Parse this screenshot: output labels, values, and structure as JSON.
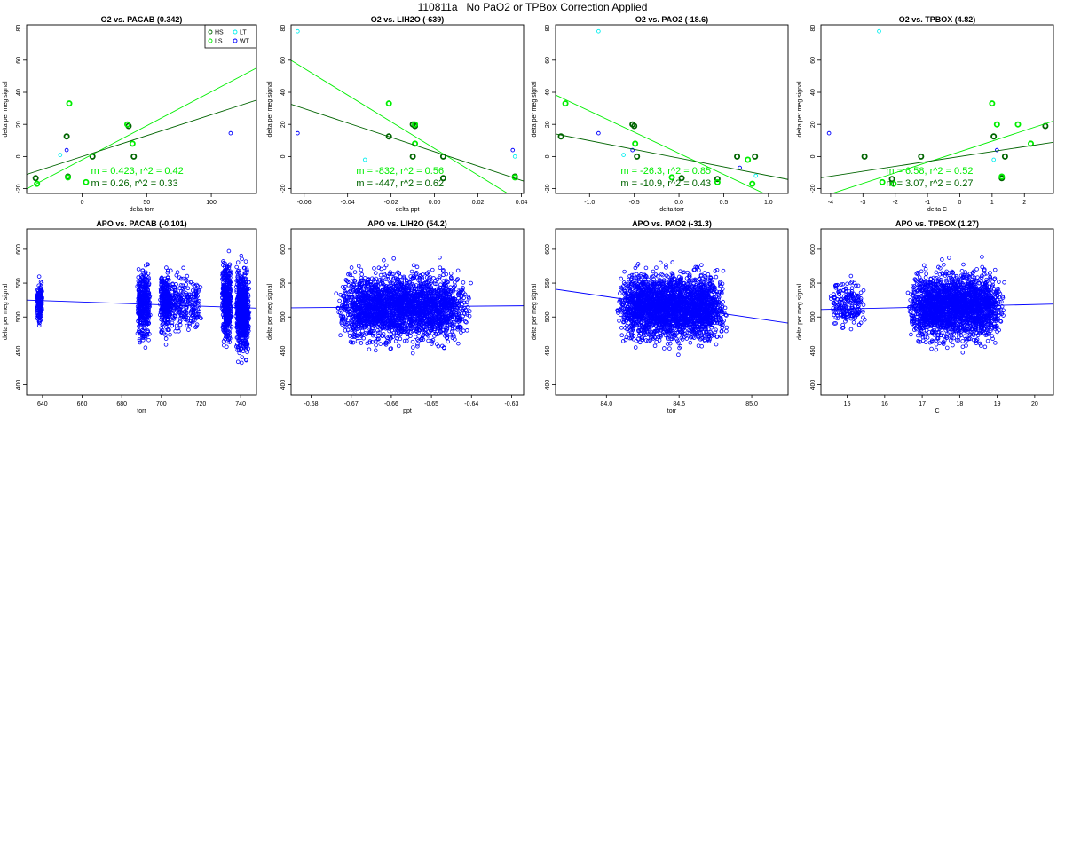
{
  "page_title": "110811a   No PaO2 or TPBox Correction Applied",
  "colors": {
    "HS": "#006400",
    "LS": "#00ee00",
    "LT": "#00eeee",
    "WT": "#0000ff",
    "apo": "#0000ff",
    "frame": "#000000"
  },
  "chart_data": [
    {
      "type": "scatter",
      "title": "O2 vs. PACAB (0.342)",
      "xlabel": "delta torr",
      "ylabel": "delta per meg signal",
      "xlim": [
        -43,
        135
      ],
      "ylim": [
        -23,
        82
      ],
      "xticks": [
        0,
        50,
        100
      ],
      "xtick_labels": [
        "0",
        "50",
        "100"
      ],
      "yticks": [
        -20,
        0,
        20,
        40,
        60,
        80
      ],
      "ytick_labels": [
        "-20",
        "0",
        "20",
        "40",
        "60",
        "80"
      ],
      "legend": {
        "position": "top-right",
        "entries": [
          {
            "label": "HS",
            "color": "#006400"
          },
          {
            "label": "LT",
            "color": "#00eeee"
          },
          {
            "label": "LS",
            "color": "#00ee00"
          },
          {
            "label": "WT",
            "color": "#0000ff"
          }
        ]
      },
      "series": [
        {
          "name": "HS",
          "color": "#006400",
          "points": [
            [
              -36,
              -13.5
            ],
            [
              -12,
              12.5
            ],
            [
              -11,
              -12.5
            ],
            [
              8,
              0
            ],
            [
              36,
              19
            ],
            [
              40,
              0
            ]
          ]
        },
        {
          "name": "LS",
          "color": "#00ee00",
          "points": [
            [
              -35,
              -17
            ],
            [
              -10,
              33
            ],
            [
              -11,
              -13
            ],
            [
              35,
              20
            ],
            [
              39,
              8
            ],
            [
              3,
              -16
            ]
          ]
        },
        {
          "name": "LT",
          "color": "#00eeee",
          "points": [
            [
              -17,
              1
            ]
          ]
        },
        {
          "name": "WT",
          "color": "#0000ff",
          "points": [
            [
              -12,
              4
            ],
            [
              115,
              14.5
            ]
          ]
        }
      ],
      "fits": [
        {
          "series": "LS",
          "slope": 0.423,
          "intercept": -2,
          "label": "m = 0.423, r^2 = 0.42",
          "color": "#00ee00"
        },
        {
          "series": "HS",
          "slope": 0.26,
          "intercept": 0,
          "label": "m = 0.26, r^2 = 0.33",
          "color": "#006400"
        }
      ]
    },
    {
      "type": "scatter",
      "title": "O2 vs. LIH2O (-639)",
      "xlabel": "delta ppt",
      "ylabel": "delta per meg signal",
      "xlim": [
        -0.066,
        0.041
      ],
      "ylim": [
        -23,
        82
      ],
      "xticks": [
        -0.06,
        -0.04,
        -0.02,
        0,
        0.02,
        0.04
      ],
      "xtick_labels": [
        "-0.06",
        "-0.04",
        "-0.02",
        "0.00",
        "0.02",
        "0.04"
      ],
      "yticks": [
        -20,
        0,
        20,
        40,
        60,
        80
      ],
      "ytick_labels": [
        "-20",
        "0",
        "20",
        "40",
        "60",
        "80"
      ],
      "series": [
        {
          "name": "HS",
          "color": "#006400",
          "points": [
            [
              -0.021,
              12.5
            ],
            [
              -0.01,
              20
            ],
            [
              -0.009,
              19
            ],
            [
              -0.01,
              0
            ],
            [
              0.004,
              0
            ],
            [
              0.004,
              -13.5
            ],
            [
              0.037,
              -12.5
            ]
          ]
        },
        {
          "name": "LS",
          "color": "#00ee00",
          "points": [
            [
              -0.021,
              33
            ],
            [
              -0.009,
              8
            ],
            [
              -0.009,
              20
            ],
            [
              0.037,
              -13
            ]
          ]
        },
        {
          "name": "LT",
          "color": "#00eeee",
          "points": [
            [
              -0.063,
              78
            ],
            [
              -0.032,
              -2
            ],
            [
              0.037,
              0
            ]
          ]
        },
        {
          "name": "WT",
          "color": "#0000ff",
          "points": [
            [
              -0.063,
              14.5
            ],
            [
              0.036,
              4
            ]
          ]
        }
      ],
      "fits": [
        {
          "series": "LS",
          "slope": -832,
          "intercept": 5,
          "label": "m = -832, r^2 = 0.56",
          "color": "#00ee00"
        },
        {
          "series": "HS",
          "slope": -447,
          "intercept": 3,
          "label": "m = -447, r^2 = 0.62",
          "color": "#006400"
        }
      ]
    },
    {
      "type": "scatter",
      "title": "O2 vs. PAO2 (-18.6)",
      "xlabel": "delta torr",
      "ylabel": "delta per meg signal",
      "xlim": [
        -1.38,
        1.22
      ],
      "ylim": [
        -23,
        82
      ],
      "xticks": [
        -1,
        -0.5,
        0,
        0.5,
        1
      ],
      "xtick_labels": [
        "-1.0",
        "-0.5",
        "0.0",
        "0.5",
        "1.0"
      ],
      "yticks": [
        -20,
        0,
        20,
        40,
        60,
        80
      ],
      "ytick_labels": [
        "-20",
        "0",
        "20",
        "40",
        "60",
        "80"
      ],
      "series": [
        {
          "name": "HS",
          "color": "#006400",
          "points": [
            [
              -1.32,
              12.5
            ],
            [
              -0.52,
              20
            ],
            [
              -0.5,
              19
            ],
            [
              -0.47,
              0
            ],
            [
              0.03,
              -13.5
            ],
            [
              0.43,
              -14
            ],
            [
              0.85,
              0
            ],
            [
              0.65,
              0
            ]
          ]
        },
        {
          "name": "LS",
          "color": "#00ee00",
          "points": [
            [
              -1.27,
              33
            ],
            [
              -0.49,
              8
            ],
            [
              -0.08,
              -13
            ],
            [
              0.82,
              -17
            ],
            [
              0.43,
              -16
            ],
            [
              0.77,
              -2
            ]
          ]
        },
        {
          "name": "LT",
          "color": "#00eeee",
          "points": [
            [
              -0.9,
              78
            ],
            [
              -0.62,
              1
            ],
            [
              0.86,
              -12
            ]
          ]
        },
        {
          "name": "WT",
          "color": "#0000ff",
          "points": [
            [
              -0.9,
              14.5
            ],
            [
              -0.52,
              4
            ],
            [
              0.68,
              -7
            ]
          ]
        }
      ],
      "fits": [
        {
          "series": "LS",
          "slope": -26.3,
          "intercept": 2,
          "label": "m = -26.3, r^2 = 0.85",
          "color": "#00ee00"
        },
        {
          "series": "HS",
          "slope": -10.9,
          "intercept": -1,
          "label": "m = -10.9, r^2 = 0.43",
          "color": "#006400"
        }
      ]
    },
    {
      "type": "scatter",
      "title": "O2 vs. TPBOX (4.82)",
      "xlabel": "delta C",
      "ylabel": "delta per meg signal",
      "xlim": [
        -4.3,
        2.9
      ],
      "ylim": [
        -23,
        82
      ],
      "xticks": [
        -4,
        -3,
        -2,
        -1,
        0,
        1,
        2
      ],
      "xtick_labels": [
        "-4",
        "-3",
        "-2",
        "-1",
        "0",
        "1",
        "2"
      ],
      "yticks": [
        -20,
        0,
        20,
        40,
        60,
        80
      ],
      "ytick_labels": [
        "-20",
        "0",
        "20",
        "40",
        "60",
        "80"
      ],
      "series": [
        {
          "name": "HS",
          "color": "#006400",
          "points": [
            [
              -2.95,
              0
            ],
            [
              -2.1,
              -14
            ],
            [
              1.05,
              12.5
            ],
            [
              1.3,
              -13.5
            ],
            [
              1.4,
              0
            ],
            [
              2.65,
              19
            ],
            [
              -1.2,
              0
            ]
          ]
        },
        {
          "name": "LS",
          "color": "#00ee00",
          "points": [
            [
              -2.4,
              -16
            ],
            [
              -2.05,
              -17
            ],
            [
              1,
              33
            ],
            [
              1.15,
              20
            ],
            [
              1.3,
              -12.5
            ],
            [
              2.2,
              8
            ],
            [
              1.8,
              20
            ]
          ]
        },
        {
          "name": "LT",
          "color": "#00eeee",
          "points": [
            [
              -2.5,
              78
            ],
            [
              1.05,
              -2
            ]
          ]
        },
        {
          "name": "WT",
          "color": "#0000ff",
          "points": [
            [
              -4.05,
              14.5
            ],
            [
              1.15,
              4
            ]
          ]
        }
      ],
      "fits": [
        {
          "series": "LS",
          "slope": 6.58,
          "intercept": 3,
          "label": "m = 6.58, r^2 = 0.52",
          "color": "#00ee00"
        },
        {
          "series": "HS",
          "slope": 3.07,
          "intercept": 0,
          "label": "m = 3.07, r^2 = 0.27",
          "color": "#006400"
        }
      ]
    },
    {
      "type": "scatter",
      "title": "APO vs. PACAB (-0.101)",
      "xlabel": "torr",
      "ylabel": "delta per meg signal",
      "xlim": [
        632,
        748
      ],
      "ylim": [
        385,
        630
      ],
      "xticks": [
        640,
        660,
        680,
        700,
        720,
        740
      ],
      "xtick_labels": [
        "640",
        "660",
        "680",
        "700",
        "720",
        "740"
      ],
      "yticks": [
        400,
        450,
        500,
        550,
        600
      ],
      "ytick_labels": [
        "400",
        "450",
        "500",
        "550",
        "600"
      ],
      "cloud": {
        "clusters": [
          {
            "x_center": 638.5,
            "x_spread": 1.5,
            "y_mean": 520,
            "y_sd": 18,
            "count": 180
          },
          {
            "x_center": 691,
            "x_spread": 3.5,
            "y_mean": 518,
            "y_sd": 35,
            "count": 380
          },
          {
            "x_center": 702,
            "x_spread": 2.8,
            "y_mean": 522,
            "y_sd": 28,
            "count": 260
          },
          {
            "x_center": 711,
            "x_spread": 10,
            "y_mean": 520,
            "y_sd": 26,
            "count": 280
          },
          {
            "x_center": 733,
            "x_spread": 2.5,
            "y_mean": 525,
            "y_sd": 40,
            "count": 420
          },
          {
            "x_center": 741,
            "x_spread": 3.5,
            "y_mean": 510,
            "y_sd": 40,
            "count": 700
          }
        ]
      },
      "fit": {
        "slope": -0.101,
        "x1": 632,
        "y1": 525,
        "x2": 748,
        "y2": 513
      },
      "series": [
        {
          "name": "APO",
          "color": "#0000ff"
        }
      ]
    },
    {
      "type": "scatter",
      "title": "APO vs. LIH2O (54.2)",
      "xlabel": "ppt",
      "ylabel": "delta per meg signal",
      "xlim": [
        -0.685,
        -0.627
      ],
      "ylim": [
        385,
        630
      ],
      "xticks": [
        -0.68,
        -0.67,
        -0.66,
        -0.65,
        -0.64,
        -0.63
      ],
      "xtick_labels": [
        "-0.68",
        "-0.67",
        "-0.66",
        "-0.65",
        "-0.64",
        "-0.63"
      ],
      "yticks": [
        400,
        450,
        500,
        550,
        600
      ],
      "ytick_labels": [
        "400",
        "450",
        "500",
        "550",
        "600"
      ],
      "cloud": {
        "clusters": [
          {
            "x_center": -0.657,
            "x_spread": 0.017,
            "y_mean": 515,
            "y_sd": 32,
            "count": 2600
          }
        ]
      },
      "fit": {
        "slope": 54.2,
        "x1": -0.685,
        "y1": 513.5,
        "x2": -0.627,
        "y2": 516.5
      },
      "series": [
        {
          "name": "APO",
          "color": "#0000ff"
        }
      ]
    },
    {
      "type": "scatter",
      "title": "APO vs. PAO2 (-31.3)",
      "xlabel": "torr",
      "ylabel": "delta per meg signal",
      "xlim": [
        83.65,
        85.25
      ],
      "ylim": [
        385,
        630
      ],
      "xticks": [
        84.0,
        84.5,
        85.0
      ],
      "xtick_labels": [
        "84.0",
        "84.5",
        "85.0"
      ],
      "yticks": [
        400,
        450,
        500,
        550,
        600
      ],
      "ytick_labels": [
        "400",
        "450",
        "500",
        "550",
        "600"
      ],
      "cloud": {
        "clusters": [
          {
            "x_center": 84.45,
            "x_spread": 0.38,
            "y_mean": 516,
            "y_sd": 32,
            "count": 2600
          }
        ]
      },
      "fit": {
        "slope": -31.3,
        "x1": 83.65,
        "y1": 541,
        "x2": 85.25,
        "y2": 491
      },
      "series": [
        {
          "name": "APO",
          "color": "#0000ff"
        }
      ]
    },
    {
      "type": "scatter",
      "title": "APO vs. TPBOX (1.27)",
      "xlabel": "C",
      "ylabel": "delta per meg signal",
      "xlim": [
        14.3,
        20.5
      ],
      "ylim": [
        385,
        630
      ],
      "xticks": [
        15,
        16,
        17,
        18,
        19,
        20
      ],
      "xtick_labels": [
        "15",
        "16",
        "17",
        "18",
        "19",
        "20"
      ],
      "yticks": [
        400,
        450,
        500,
        550,
        600
      ],
      "ytick_labels": [
        "400",
        "450",
        "500",
        "550",
        "600"
      ],
      "cloud": {
        "clusters": [
          {
            "x_center": 17.9,
            "x_spread": 1.3,
            "y_mean": 516,
            "y_sd": 32,
            "count": 2300
          },
          {
            "x_center": 15.0,
            "x_spread": 0.5,
            "y_mean": 520,
            "y_sd": 22,
            "count": 200
          }
        ]
      },
      "fit": {
        "slope": 1.27,
        "x1": 14.3,
        "y1": 511,
        "x2": 20.5,
        "y2": 519
      },
      "series": [
        {
          "name": "APO",
          "color": "#0000ff"
        }
      ]
    }
  ]
}
